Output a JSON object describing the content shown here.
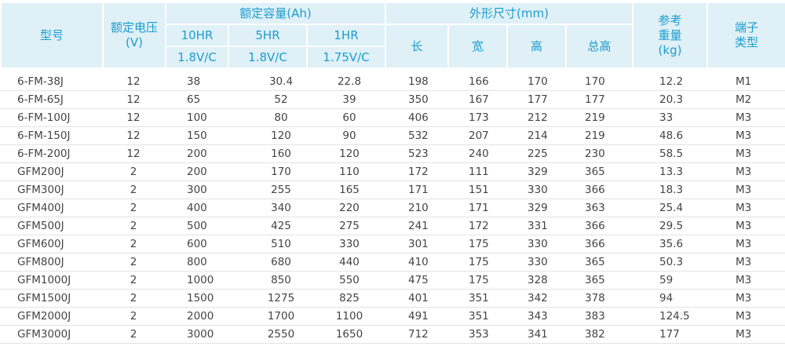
{
  "header": {
    "model": "型号",
    "voltage": [
      "额定电压",
      "(V)"
    ],
    "capacity": "额定容量(Ah)",
    "rates": [
      "10HR",
      "5HR",
      "1HR"
    ],
    "conditions": [
      "1.8V/C",
      "1.8V/C",
      "1.75V/C"
    ],
    "dimensions": "外形尺寸(mm)",
    "dims": [
      "长",
      "宽",
      "高",
      "总高"
    ],
    "weight": [
      "参考",
      "重量",
      "(kg)"
    ],
    "terminal": [
      "端子",
      "类型"
    ]
  },
  "rows": [
    [
      "6-FM-38J",
      "12",
      "38",
      "30.4",
      "22.8",
      "198",
      "166",
      "170",
      "170",
      "12.2",
      "M1"
    ],
    [
      "6-FM-65J",
      "12",
      "65",
      "52",
      "39",
      "350",
      "167",
      "177",
      "177",
      "20.3",
      "M2"
    ],
    [
      "6-FM-100J",
      "12",
      "100",
      "80",
      "60",
      "406",
      "173",
      "212",
      "219",
      "33",
      "M3"
    ],
    [
      "6-FM-150J",
      "12",
      "150",
      "120",
      "90",
      "532",
      "207",
      "214",
      "219",
      "48.6",
      "M3"
    ],
    [
      "6-FM-200J",
      "12",
      "200",
      "160",
      "120",
      "523",
      "240",
      "225",
      "230",
      "58.5",
      "M3"
    ],
    [
      "GFM200J",
      "2",
      "200",
      "170",
      "110",
      "172",
      "111",
      "329",
      "365",
      "13.3",
      "M3"
    ],
    [
      "GFM300J",
      "2",
      "300",
      "255",
      "165",
      "171",
      "151",
      "330",
      "366",
      "18.3",
      "M3"
    ],
    [
      "GFM400J",
      "2",
      "400",
      "340",
      "220",
      "210",
      "171",
      "329",
      "363",
      "25.4",
      "M3"
    ],
    [
      "GFM500J",
      "2",
      "500",
      "425",
      "275",
      "241",
      "172",
      "331",
      "366",
      "29.5",
      "M3"
    ],
    [
      "GFM600J",
      "2",
      "600",
      "510",
      "330",
      "301",
      "175",
      "330",
      "366",
      "35.6",
      "M3"
    ],
    [
      "GFM800J",
      "2",
      "800",
      "680",
      "440",
      "410",
      "175",
      "330",
      "365",
      "50.3",
      "M3"
    ],
    [
      "GFM1000J",
      "2",
      "1000",
      "850",
      "550",
      "475",
      "175",
      "328",
      "365",
      "59",
      "M3"
    ],
    [
      "GFM1500J",
      "2",
      "1500",
      "1275",
      "825",
      "401",
      "351",
      "342",
      "378",
      "94",
      "M3"
    ],
    [
      "GFM2000J",
      "2",
      "2000",
      "1700",
      "1100",
      "491",
      "351",
      "343",
      "383",
      "124.5",
      "M3"
    ],
    [
      "GFM3000J",
      "2",
      "3000",
      "2550",
      "1650",
      "712",
      "353",
      "341",
      "382",
      "177",
      "M3"
    ]
  ]
}
